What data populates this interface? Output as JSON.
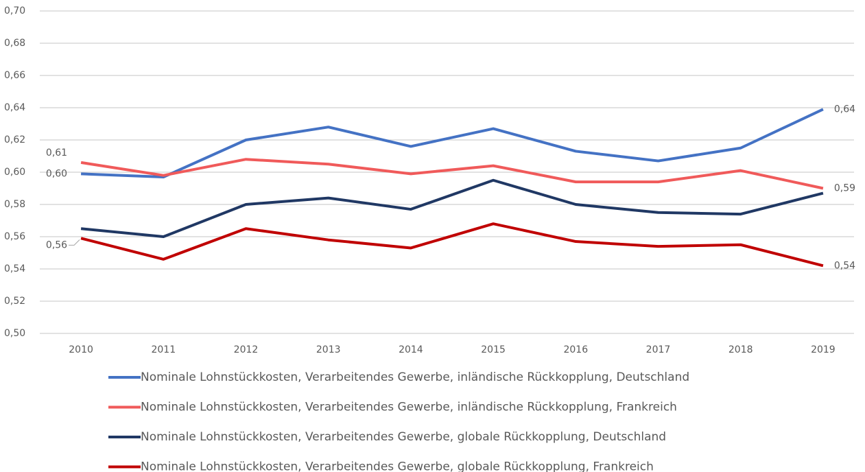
{
  "chart_data": {
    "type": "line",
    "categories": [
      "2010",
      "2011",
      "2012",
      "2013",
      "2014",
      "2015",
      "2016",
      "2017",
      "2018",
      "2019"
    ],
    "series": [
      {
        "name": "Nominale Lohnstückkosten, Verarbeitendes Gewerbe, inländische Rückkopplung, Deutschland",
        "color": "#4472c4",
        "values": [
          0.599,
          0.597,
          0.62,
          0.628,
          0.616,
          0.627,
          0.613,
          0.607,
          0.615,
          0.639
        ],
        "value_labels": [
          "0,60",
          null,
          null,
          null,
          null,
          null,
          null,
          null,
          null,
          "0,64"
        ]
      },
      {
        "name": "Nominale Lohnstückkosten, Verarbeitendes Gewerbe, inländische Rückkopplung, Frankreich",
        "color": "#f05a5a",
        "values": [
          0.606,
          0.598,
          0.608,
          0.605,
          0.599,
          0.604,
          0.594,
          0.594,
          0.601,
          0.59
        ],
        "value_labels": [
          "0,61",
          null,
          null,
          null,
          null,
          null,
          null,
          null,
          null,
          "0,59"
        ]
      },
      {
        "name": "Nominale Lohnstückkosten, Verarbeitendes Gewerbe, globale Rückkopplung, Deutschland",
        "color": "#203864",
        "values": [
          0.565,
          0.56,
          0.58,
          0.584,
          0.577,
          0.595,
          0.58,
          0.575,
          0.574,
          0.587
        ]
      },
      {
        "name": "Nominale Lohnstückkosten, Verarbeitendes Gewerbe, globale Rückkopplung, Frankreich",
        "color": "#c00000",
        "values": [
          0.559,
          0.546,
          0.565,
          0.558,
          0.553,
          0.568,
          0.557,
          0.554,
          0.555,
          0.542
        ],
        "value_labels": [
          "0,56",
          null,
          null,
          null,
          null,
          null,
          null,
          null,
          null,
          "0,54"
        ]
      }
    ],
    "ylim": [
      0.5,
      0.7
    ],
    "yticks": [
      {
        "value": 0.5,
        "label": "0,50"
      },
      {
        "value": 0.52,
        "label": "0,52"
      },
      {
        "value": 0.54,
        "label": "0,54"
      },
      {
        "value": 0.56,
        "label": "0,56"
      },
      {
        "value": 0.58,
        "label": "0,58"
      },
      {
        "value": 0.6,
        "label": "0,60"
      },
      {
        "value": 0.62,
        "label": "0,62"
      },
      {
        "value": 0.64,
        "label": "0,64"
      },
      {
        "value": 0.66,
        "label": "0,66"
      },
      {
        "value": 0.68,
        "label": "0,68"
      },
      {
        "value": 0.7,
        "label": "0,70"
      }
    ],
    "grid": true,
    "legend": "bottom"
  }
}
